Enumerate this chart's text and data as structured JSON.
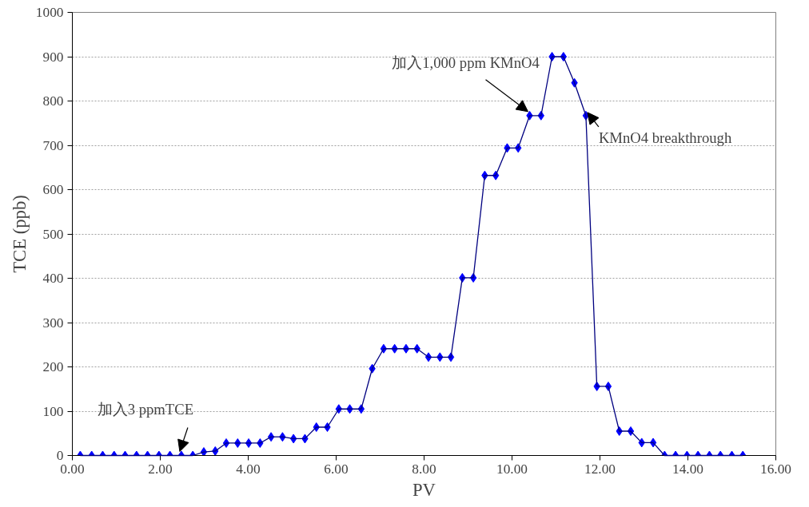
{
  "chart_data": {
    "type": "line",
    "xlabel": "PV",
    "ylabel": "TCE (ppb)",
    "x": [
      0.18,
      0.44,
      0.69,
      0.95,
      1.2,
      1.46,
      1.71,
      1.97,
      2.22,
      2.48,
      2.74,
      2.99,
      3.25,
      3.5,
      3.76,
      4.01,
      4.27,
      4.52,
      4.78,
      5.03,
      5.29,
      5.55,
      5.8,
      6.06,
      6.31,
      6.57,
      6.82,
      7.08,
      7.33,
      7.59,
      7.84,
      8.1,
      8.36,
      8.61,
      8.87,
      9.12,
      9.38,
      9.63,
      9.89,
      10.14,
      10.4,
      10.66,
      10.91,
      11.17,
      11.42,
      11.68,
      11.93,
      12.19,
      12.44,
      12.7,
      12.95,
      13.21,
      13.47,
      13.72,
      13.98,
      14.23,
      14.49,
      14.74,
      15.0,
      15.25
    ],
    "series": [
      {
        "color": "#0000ff",
        "values": [
          0,
          0,
          0,
          0,
          0,
          0,
          0,
          0,
          0,
          0,
          0,
          8,
          10,
          28,
          28,
          28,
          28,
          42,
          42,
          38,
          38,
          64,
          64,
          105,
          105,
          105,
          196,
          241,
          241,
          241,
          241,
          222,
          222,
          222,
          401,
          401,
          632,
          632,
          694,
          694,
          767,
          767,
          900,
          900,
          841,
          767,
          156,
          156,
          55,
          55,
          29,
          29,
          0,
          0,
          0,
          0,
          0,
          0,
          0,
          0
        ]
      }
    ],
    "xlim": [
      0,
      16
    ],
    "xticks": [
      {
        "value": 0,
        "label": "0.00"
      },
      {
        "value": 2,
        "label": "2.00"
      },
      {
        "value": 4,
        "label": "4.00"
      },
      {
        "value": 6,
        "label": "6.00"
      },
      {
        "value": 8,
        "label": "8.00"
      },
      {
        "value": 10,
        "label": "10.00"
      },
      {
        "value": 12,
        "label": "12.00"
      },
      {
        "value": 14,
        "label": "14.00"
      },
      {
        "value": 16,
        "label": "16.00"
      }
    ],
    "ylim": [
      0,
      1000
    ],
    "yticks": [
      0,
      100,
      200,
      300,
      400,
      500,
      600,
      700,
      800,
      900,
      1000
    ],
    "grid": "y",
    "marker": "diamond",
    "line_style": "solid",
    "annotations": [
      {
        "text": "加入3 ppmTCE",
        "x": 2.48,
        "y": 0
      },
      {
        "text": "加入1,000 ppm KMnO4",
        "x": 10.4,
        "y": 767
      },
      {
        "text": "KMnO4 breakthrough",
        "x": 11.68,
        "y": 767
      }
    ]
  }
}
